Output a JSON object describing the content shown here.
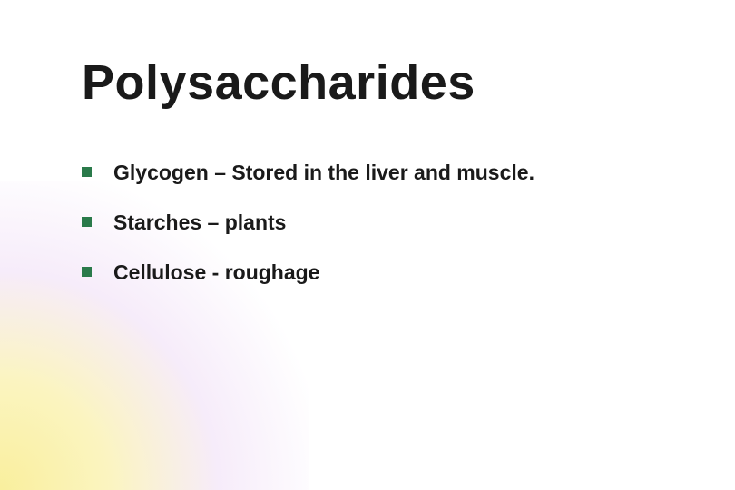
{
  "slide": {
    "title": "Polysaccharides",
    "title_color": "#1a1a1a",
    "title_fontsize": 54,
    "background_color": "#ffffff",
    "gradient": {
      "inner_color": "#f8ec8c",
      "mid_color": "#e6c8f0",
      "position": "bottom-left"
    },
    "bullets": [
      {
        "text": "Glycogen – Stored in the liver and muscle."
      },
      {
        "text": "Starches – plants"
      },
      {
        "text": "Cellulose  - roughage"
      }
    ],
    "bullet_marker_color": "#2a7a4a",
    "bullet_marker_size": 11,
    "bullet_fontsize": 23,
    "bullet_color": "#1a1a1a"
  }
}
